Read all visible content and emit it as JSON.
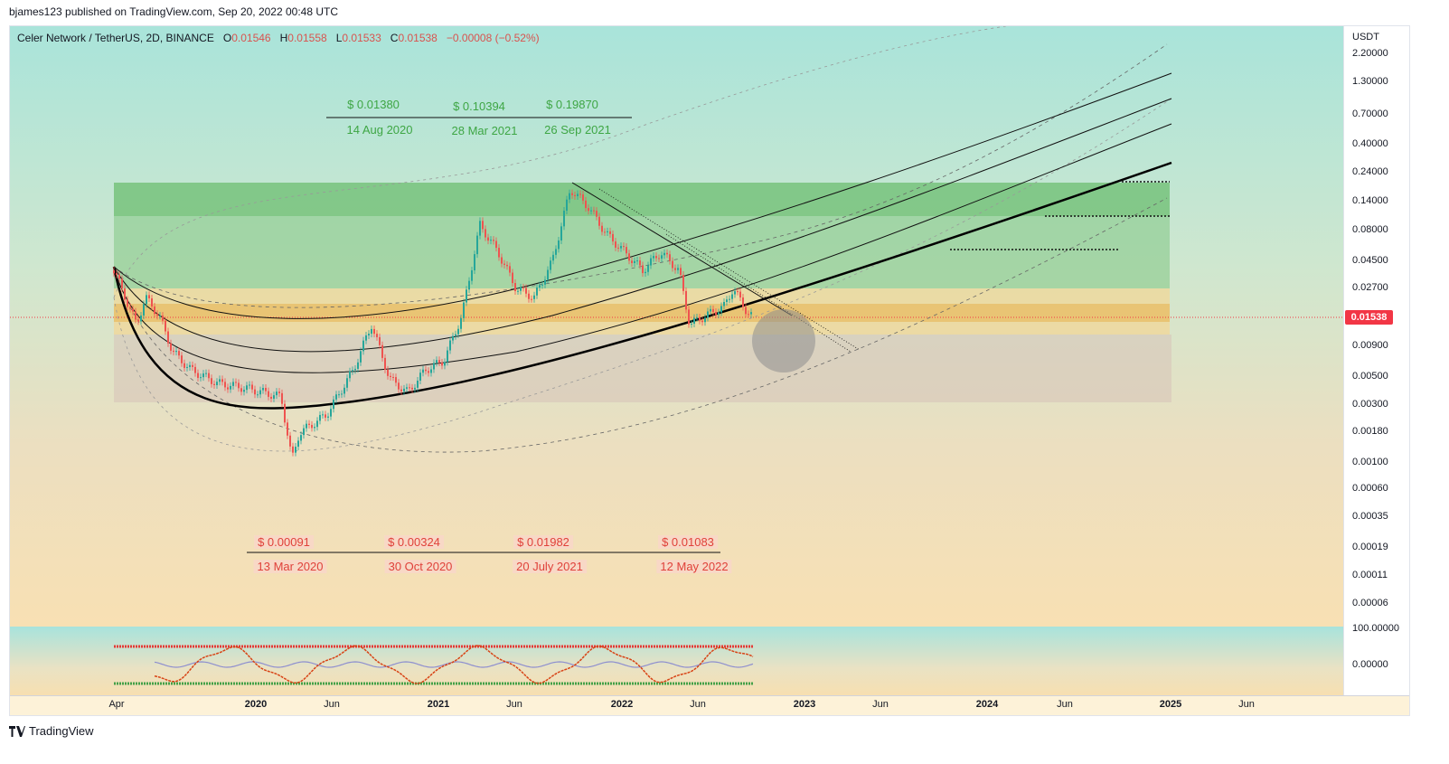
{
  "header": {
    "published_text": "bjames123 published on TradingView.com, Sep 20, 2022 00:48 UTC"
  },
  "symbol": {
    "name": "Celer Network / TetherUS, 2D, BINANCE",
    "o_label": "O",
    "o": "0.01546",
    "h_label": "H",
    "h": "0.01558",
    "l_label": "L",
    "l": "0.01533",
    "c_label": "C",
    "c": "0.01538",
    "change": "−0.00008 (−0.52%)"
  },
  "price_axis": {
    "currency": "USDT",
    "ticks": [
      "2.20000",
      "1.30000",
      "0.70000",
      "0.40000",
      "0.24000",
      "0.14000",
      "0.08000",
      "0.04500",
      "0.02700",
      "0.00900",
      "0.00500",
      "0.00300",
      "0.00180",
      "0.00100",
      "0.00060",
      "0.00035",
      "0.00019",
      "0.00011",
      "0.00006"
    ],
    "last_price": "0.01538"
  },
  "oscillator_axis": {
    "ticks": [
      "100.00000",
      "0.00000"
    ]
  },
  "time_axis": {
    "ticks": [
      {
        "label": "Apr",
        "bold": false
      },
      {
        "label": "2020",
        "bold": true
      },
      {
        "label": "Jun",
        "bold": false
      },
      {
        "label": "2021",
        "bold": true
      },
      {
        "label": "Jun",
        "bold": false
      },
      {
        "label": "2022",
        "bold": true
      },
      {
        "label": "Jun",
        "bold": false
      },
      {
        "label": "2023",
        "bold": true
      },
      {
        "label": "Jun",
        "bold": false
      },
      {
        "label": "2024",
        "bold": true
      },
      {
        "label": "Jun",
        "bold": false
      },
      {
        "label": "2025",
        "bold": true
      },
      {
        "label": "Jun",
        "bold": false
      }
    ]
  },
  "annotations": {
    "highs": [
      {
        "price": "$ 0.01380",
        "date": "14 Aug 2020"
      },
      {
        "price": "$ 0.10394",
        "date": "28 Mar 2021"
      },
      {
        "price": "$ 0.19870",
        "date": "26 Sep 2021"
      }
    ],
    "lows": [
      {
        "price": "$ 0.00091",
        "date": "13 Mar 2020"
      },
      {
        "price": "$ 0.00324",
        "date": "30 Oct 2020"
      },
      {
        "price": "$ 0.01982",
        "date": "20 July 2021"
      },
      {
        "price": "$ 0.01083",
        "date": "12 May 2022"
      }
    ]
  },
  "colors": {
    "up": "#26a69a",
    "down": "#ef5350",
    "green_zone": "#4caf50",
    "orange_zone": "#f5b041",
    "ann_green": "#3ea644",
    "ann_red": "#e0413a"
  },
  "footer": {
    "brand": "TradingView",
    "logo_icon": "tradingview-logo-icon"
  }
}
